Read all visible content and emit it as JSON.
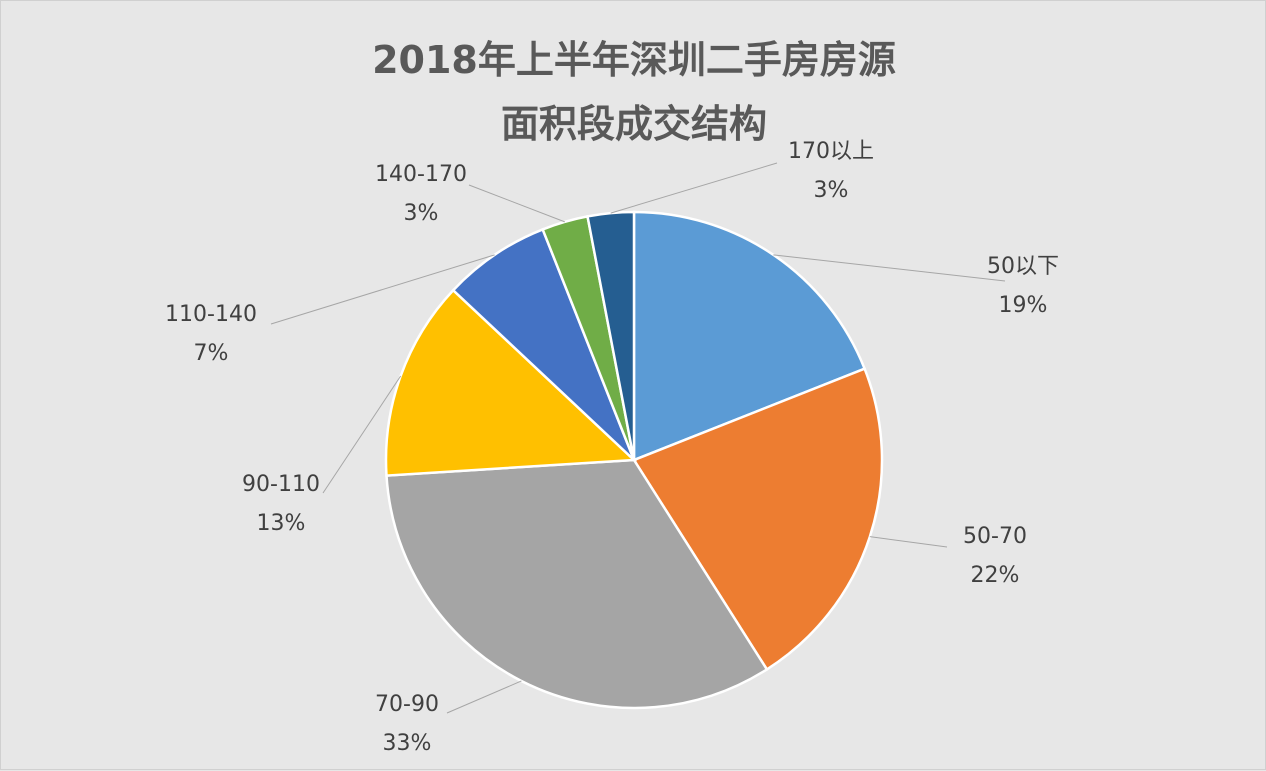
{
  "chart_data": {
    "type": "pie",
    "title_lines": [
      "2018年上半年深圳二手房房源",
      "面积段成交结构"
    ],
    "categories": [
      "50以下",
      "50-70",
      "70-90",
      "90-110",
      "110-140",
      "140-170",
      "170以上"
    ],
    "values": [
      19,
      22,
      33,
      13,
      7,
      3,
      3
    ],
    "value_labels": [
      "19%",
      "22%",
      "33%",
      "13%",
      "7%",
      "3%",
      "3%"
    ],
    "colors": [
      "#5b9bd5",
      "#ed7d31",
      "#a5a5a5",
      "#ffc000",
      "#4472c4",
      "#70ad47",
      "#255e91"
    ],
    "legend": "none",
    "start_angle_deg": 0,
    "direction": "clockwise"
  }
}
